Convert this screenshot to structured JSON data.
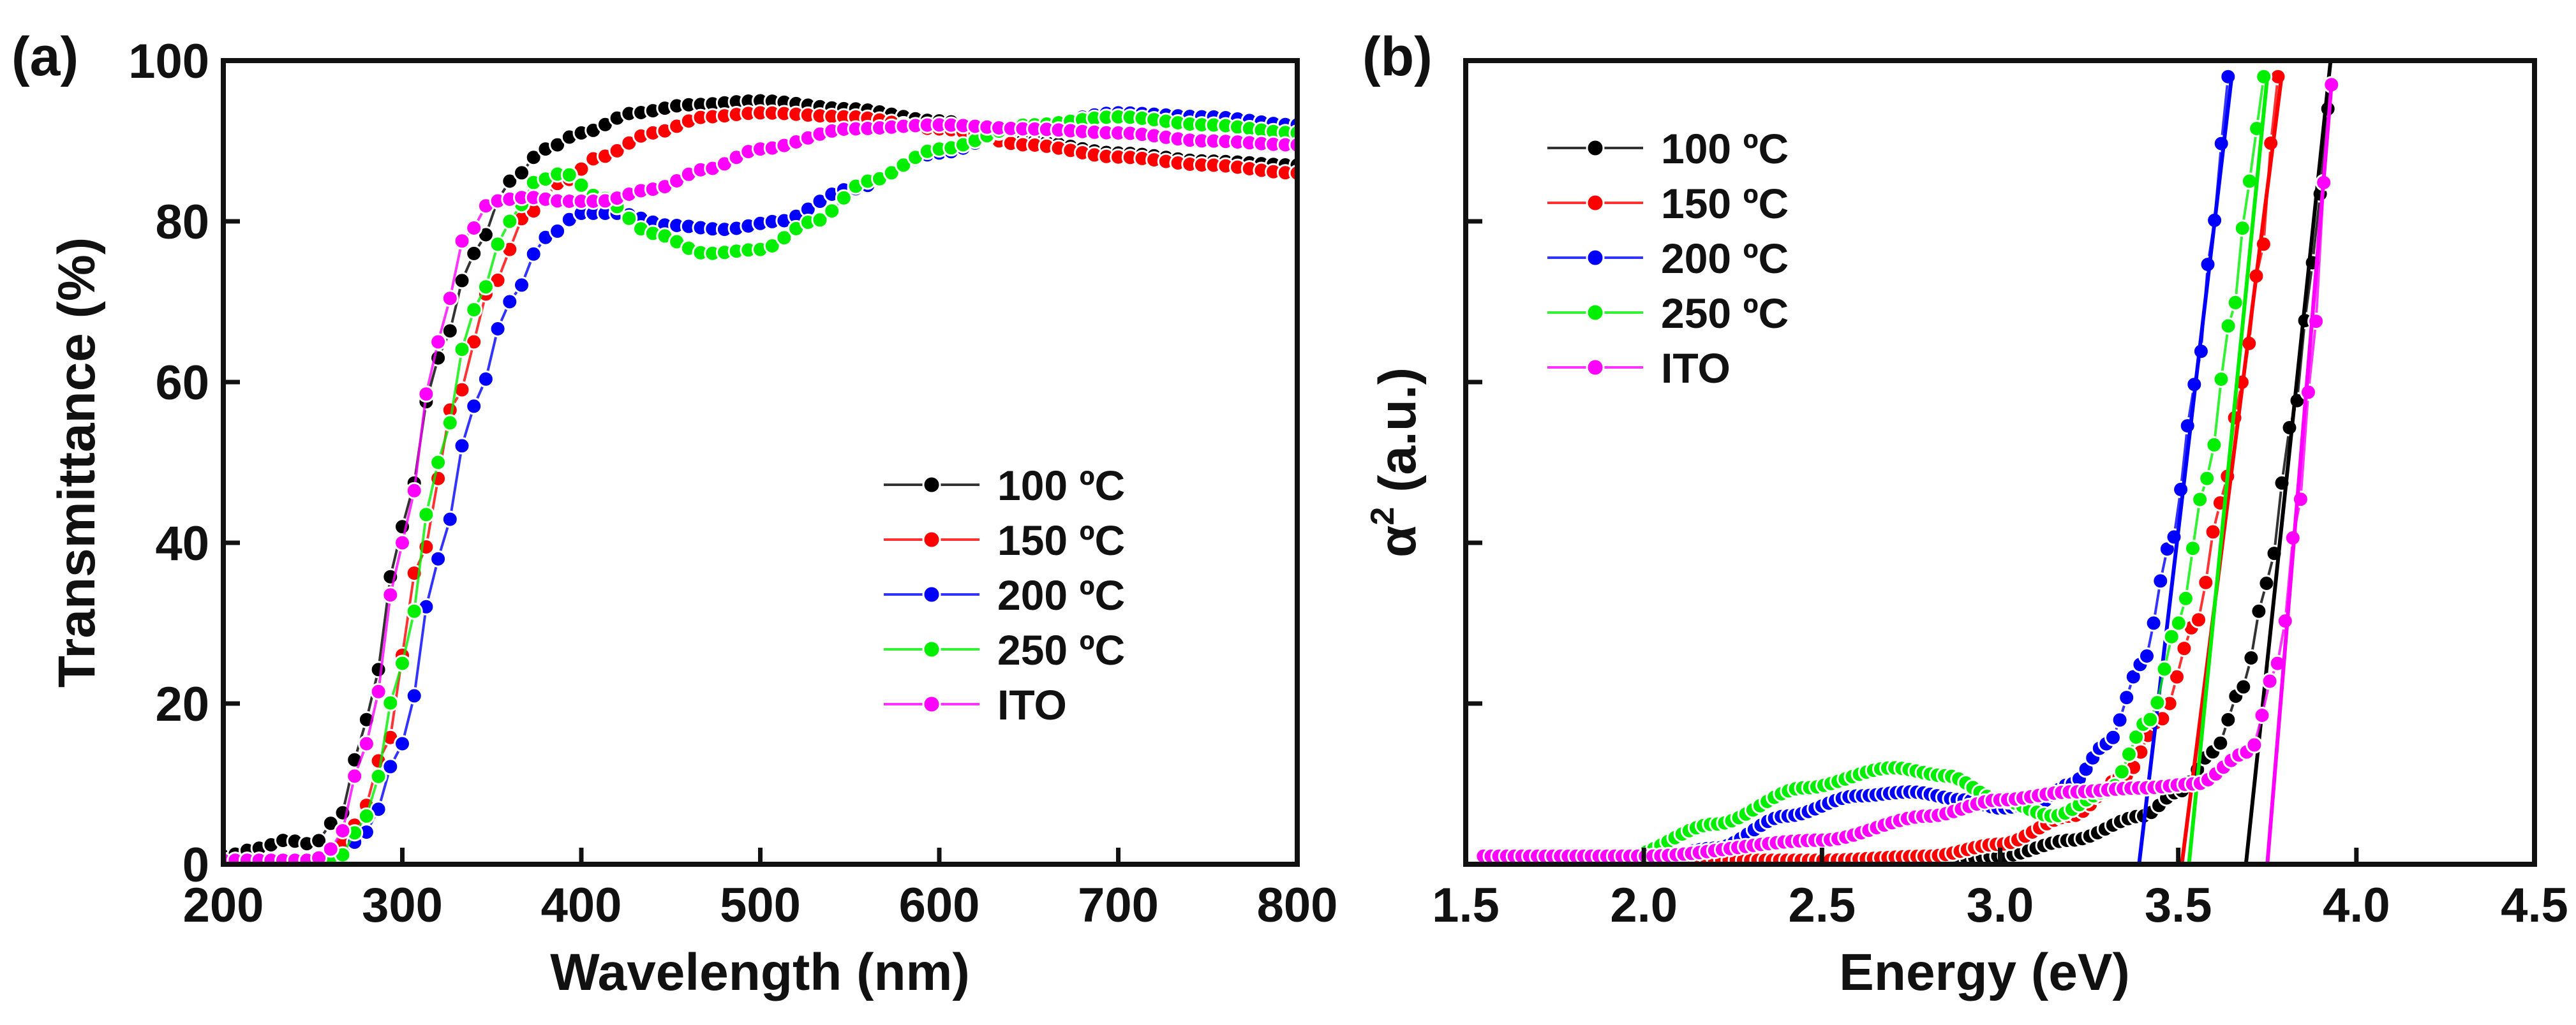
{
  "chart_data": [
    {
      "panel": "a",
      "panel_label": "(a)",
      "type": "line",
      "xlabel": "Wavelength (nm)",
      "ylabel": "Transmittance (%)",
      "xlim": [
        200,
        800
      ],
      "ylim": [
        0,
        100
      ],
      "x_ticks": [
        200,
        300,
        400,
        500,
        600,
        700,
        800
      ],
      "y_ticks": [
        0,
        20,
        40,
        60,
        80,
        100
      ],
      "legend_position": "center-right",
      "series": [
        {
          "name": "100 ºC",
          "color": "#000000",
          "points": [
            [
              200,
              1
            ],
            [
              220,
              2
            ],
            [
              235,
              3
            ],
            [
              250,
              2.5
            ],
            [
              265,
              6
            ],
            [
              280,
              18
            ],
            [
              300,
              42
            ],
            [
              320,
              63
            ],
            [
              340,
              76
            ],
            [
              360,
              85
            ],
            [
              380,
              89
            ],
            [
              400,
              91
            ],
            [
              430,
              93.5
            ],
            [
              460,
              94.5
            ],
            [
              500,
              95
            ],
            [
              550,
              94
            ],
            [
              600,
              92.5
            ],
            [
              650,
              90
            ],
            [
              700,
              88.5
            ],
            [
              750,
              87.5
            ],
            [
              800,
              87
            ]
          ]
        },
        {
          "name": "150 ºC",
          "color": "#ff0000",
          "points": [
            [
              200,
              0.5
            ],
            [
              240,
              0.5
            ],
            [
              260,
              1
            ],
            [
              275,
              5
            ],
            [
              290,
              14
            ],
            [
              310,
              38
            ],
            [
              330,
              58
            ],
            [
              350,
              72
            ],
            [
              370,
              81
            ],
            [
              390,
              85
            ],
            [
              410,
              88
            ],
            [
              440,
              91
            ],
            [
              470,
              93
            ],
            [
              500,
              93.5
            ],
            [
              550,
              93
            ],
            [
              600,
              91.5
            ],
            [
              650,
              89.5
            ],
            [
              700,
              88
            ],
            [
              750,
              87
            ],
            [
              800,
              86
            ]
          ]
        },
        {
          "name": "200 ºC",
          "color": "#0000ff",
          "points": [
            [
              200,
              0.5
            ],
            [
              250,
              0.5
            ],
            [
              265,
              1
            ],
            [
              280,
              4
            ],
            [
              300,
              15
            ],
            [
              320,
              38
            ],
            [
              340,
              57
            ],
            [
              360,
              70
            ],
            [
              380,
              78
            ],
            [
              400,
              81
            ],
            [
              420,
              81
            ],
            [
              450,
              79.5
            ],
            [
              480,
              79
            ],
            [
              510,
              80
            ],
            [
              550,
              84
            ],
            [
              600,
              88.5
            ],
            [
              650,
              92
            ],
            [
              700,
              93.5
            ],
            [
              750,
              93
            ],
            [
              800,
              92
            ]
          ]
        },
        {
          "name": "250 ºC",
          "color": "#00ee00",
          "points": [
            [
              200,
              0.5
            ],
            [
              250,
              0.5
            ],
            [
              265,
              1
            ],
            [
              280,
              6
            ],
            [
              300,
              25
            ],
            [
              320,
              50
            ],
            [
              340,
              69
            ],
            [
              360,
              80
            ],
            [
              375,
              85
            ],
            [
              390,
              86
            ],
            [
              410,
              83
            ],
            [
              440,
              78.5
            ],
            [
              470,
              76
            ],
            [
              500,
              76.5
            ],
            [
              530,
              80
            ],
            [
              560,
              85
            ],
            [
              600,
              89
            ],
            [
              650,
              92
            ],
            [
              700,
              93
            ],
            [
              750,
              92
            ],
            [
              800,
              91
            ]
          ]
        },
        {
          "name": "ITO",
          "color": "#ff00ff",
          "points": [
            [
              200,
              0.5
            ],
            [
              250,
              0.5
            ],
            [
              262,
              2
            ],
            [
              280,
              15
            ],
            [
              300,
              40
            ],
            [
              320,
              65
            ],
            [
              335,
              78
            ],
            [
              350,
              82.5
            ],
            [
              370,
              83
            ],
            [
              390,
              82.5
            ],
            [
              410,
              82.5
            ],
            [
              440,
              84
            ],
            [
              470,
              86.5
            ],
            [
              500,
              89
            ],
            [
              550,
              91.5
            ],
            [
              600,
              92
            ],
            [
              650,
              91.5
            ],
            [
              700,
              91
            ],
            [
              750,
              90
            ],
            [
              800,
              89.5
            ]
          ]
        }
      ],
      "legend": [
        "100 ºC",
        "150 ºC",
        "200 ºC",
        "250 ºC",
        "ITO"
      ]
    },
    {
      "panel": "b",
      "panel_label": "(b)",
      "type": "line",
      "xlabel": "Energy (eV)",
      "ylabel": "α² (a.u.)",
      "ylabel_main": "α",
      "ylabel_sup": "2",
      "ylabel_rest": " (a.u.)",
      "xlim": [
        1.5,
        4.5
      ],
      "ylim": [
        0,
        100
      ],
      "x_ticks": [
        1.5,
        2.0,
        2.5,
        3.0,
        3.5,
        4.0,
        4.5
      ],
      "x_tick_labels": [
        "1.5",
        "2.0",
        "2.5",
        "3.0",
        "3.5",
        "4.0",
        "4.5"
      ],
      "y_ticks": [
        20,
        40,
        60,
        80
      ],
      "legend_position": "top-left",
      "series": [
        {
          "name": "100 ºC",
          "color": "#000000",
          "points": [
            [
              1.55,
              1
            ],
            [
              2.0,
              0.5
            ],
            [
              2.5,
              0.3
            ],
            [
              2.8,
              0.3
            ],
            [
              3.0,
              1
            ],
            [
              3.2,
              3
            ],
            [
              3.4,
              6
            ],
            [
              3.5,
              9
            ],
            [
              3.6,
              14
            ],
            [
              3.68,
              22
            ],
            [
              3.75,
              35
            ],
            [
              3.82,
              55
            ],
            [
              3.88,
              75
            ],
            [
              3.92,
              94
            ]
          ],
          "fit": [
            [
              3.69,
              0
            ],
            [
              3.93,
              101
            ]
          ]
        },
        {
          "name": "150 ºC",
          "color": "#ff0000",
          "points": [
            [
              1.55,
              1
            ],
            [
              2.0,
              0.5
            ],
            [
              2.5,
              0.5
            ],
            [
              2.8,
              1
            ],
            [
              3.0,
              2.5
            ],
            [
              3.2,
              6
            ],
            [
              3.35,
              11
            ],
            [
              3.45,
              18
            ],
            [
              3.55,
              30
            ],
            [
              3.62,
              45
            ],
            [
              3.68,
              60
            ],
            [
              3.73,
              75
            ],
            [
              3.78,
              98
            ]
          ],
          "fit": [
            [
              3.51,
              0
            ],
            [
              3.79,
              98
            ]
          ]
        },
        {
          "name": "200 ºC",
          "color": "#0000ff",
          "points": [
            [
              1.55,
              0.5
            ],
            [
              2.0,
              0.5
            ],
            [
              2.2,
              2
            ],
            [
              2.4,
              6
            ],
            [
              2.6,
              8.5
            ],
            [
              2.75,
              9
            ],
            [
              2.9,
              8
            ],
            [
              3.0,
              7
            ],
            [
              3.1,
              7.5
            ],
            [
              3.2,
              10
            ],
            [
              3.3,
              15
            ],
            [
              3.4,
              25
            ],
            [
              3.48,
              40
            ],
            [
              3.55,
              60
            ],
            [
              3.6,
              80
            ],
            [
              3.64,
              98
            ]
          ],
          "fit": [
            [
              3.39,
              0
            ],
            [
              3.65,
              98
            ]
          ]
        },
        {
          "name": "250 ºC",
          "color": "#00ee00",
          "points": [
            [
              1.55,
              0.5
            ],
            [
              1.95,
              1
            ],
            [
              2.2,
              5
            ],
            [
              2.45,
              9.5
            ],
            [
              2.7,
              12
            ],
            [
              2.85,
              11
            ],
            [
              3.0,
              8
            ],
            [
              3.15,
              6
            ],
            [
              3.3,
              9
            ],
            [
              3.42,
              18
            ],
            [
              3.5,
              30
            ],
            [
              3.58,
              48
            ],
            [
              3.65,
              68
            ],
            [
              3.7,
              85
            ],
            [
              3.74,
              98
            ]
          ],
          "fit": [
            [
              3.53,
              0
            ],
            [
              3.75,
              98
            ]
          ]
        },
        {
          "name": "ITO",
          "color": "#ff00ff",
          "points": [
            [
              1.55,
              1
            ],
            [
              2.0,
              1
            ],
            [
              2.5,
              3
            ],
            [
              2.8,
              6
            ],
            [
              3.0,
              8
            ],
            [
              3.2,
              9
            ],
            [
              3.4,
              9.5
            ],
            [
              3.55,
              10
            ],
            [
              3.7,
              14
            ],
            [
              3.78,
              25
            ],
            [
              3.84,
              45
            ],
            [
              3.88,
              65
            ],
            [
              3.91,
              85
            ],
            [
              3.93,
              97
            ]
          ],
          "fit": [
            [
              3.75,
              0
            ],
            [
              3.93,
              97
            ]
          ]
        }
      ],
      "legend": [
        "100 ºC",
        "150 ºC",
        "200 ºC",
        "250 ºC",
        "ITO"
      ]
    }
  ]
}
